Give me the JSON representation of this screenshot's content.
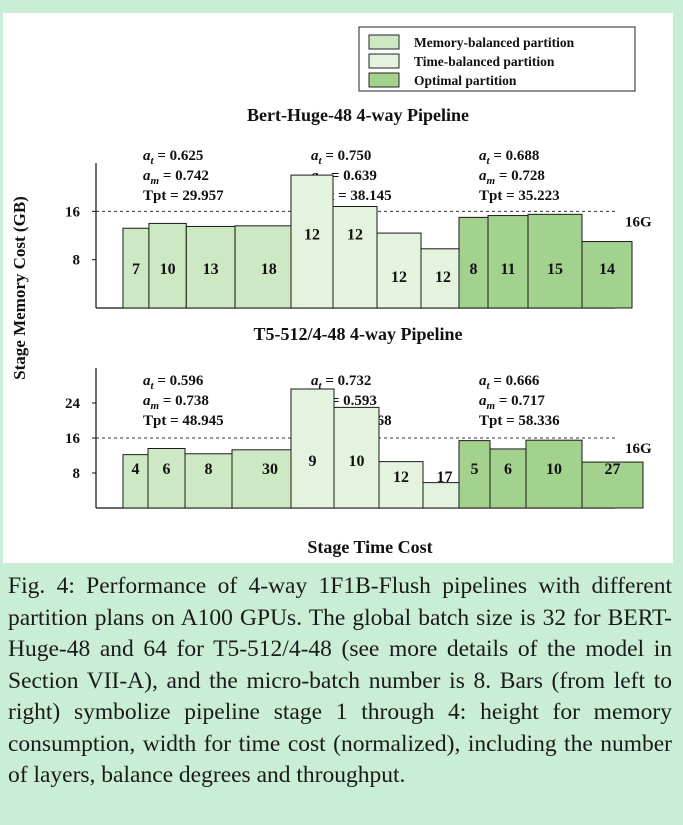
{
  "caption": "Fig. 4: Performance of 4-way 1F1B-Flush pipelines with different partition plans on A100 GPUs. The global batch size is 32 for BERT-Huge-48 and 64 for T5-512/4-48 (see more details of the model in Section VII-A), and the micro-batch number is 8. Bars (from left to right) symbolize pipeline stage 1 through 4: height for memory consumption, width for time cost (normalized), including the number of layers, balance degrees and throughput.",
  "colors": {
    "memory_balanced": "#cde9c3",
    "time_balanced": "#e4f3de",
    "optimal": "#a3d28f",
    "bar_stroke": "#1a1a1a"
  },
  "chart_data": {
    "type": "bar",
    "ylabel": "Stage Memory Cost (GB)",
    "xlabel": "Stage Time Cost",
    "legend": {
      "position": "top-right",
      "entries": [
        {
          "key": "memory_balanced",
          "label": "Memory-balanced partition"
        },
        {
          "key": "time_balanced",
          "label": "Time-balanced partition"
        },
        {
          "key": "optimal",
          "label": "Optimal partition"
        }
      ]
    },
    "panels": [
      {
        "title": "Bert-Huge-48 4-way Pipeline",
        "ylim": [
          0,
          24
        ],
        "yticks": [
          "8",
          "16"
        ],
        "ytick_values": [
          8,
          16
        ],
        "threshold": 16,
        "threshold_label": "16G",
        "groups": [
          {
            "partition": "memory_balanced",
            "metrics": {
              "a_t": "0.625",
              "a_m": "0.742",
              "tpt": "29.957"
            },
            "stages": [
              {
                "layers": "7",
                "memory": 13.2,
                "time": 0.25
              },
              {
                "layers": "10",
                "memory": 14.0,
                "time": 0.36
              },
              {
                "layers": "13",
                "memory": 13.5,
                "time": 0.47
              },
              {
                "layers": "18",
                "memory": 13.6,
                "time": 0.65
              }
            ]
          },
          {
            "partition": "time_balanced",
            "metrics": {
              "a_t": "0.750",
              "a_m": "0.639",
              "tpt": "38.145"
            },
            "stages": [
              {
                "layers": "12",
                "memory": 22.0,
                "time": 0.42
              },
              {
                "layers": "12",
                "memory": 16.8,
                "time": 0.44
              },
              {
                "layers": "12",
                "memory": 12.4,
                "time": 0.44
              },
              {
                "layers": "12",
                "memory": 9.8,
                "time": 0.44
              }
            ]
          },
          {
            "partition": "optimal",
            "metrics": {
              "a_t": "0.688",
              "a_m": "0.728",
              "tpt": "35.223"
            },
            "stages": [
              {
                "layers": "8",
                "memory": 15.0,
                "time": 0.29
              },
              {
                "layers": "11",
                "memory": 15.3,
                "time": 0.4
              },
              {
                "layers": "15",
                "memory": 15.5,
                "time": 0.54
              },
              {
                "layers": "14",
                "memory": 11.0,
                "time": 0.5
              }
            ]
          }
        ]
      },
      {
        "title": "T5-512/4-48 4-way Pipeline",
        "ylim": [
          0,
          32
        ],
        "yticks": [
          "8",
          "16",
          "24"
        ],
        "ytick_values": [
          8,
          16,
          24
        ],
        "threshold": 16,
        "threshold_label": "16G",
        "groups": [
          {
            "partition": "memory_balanced",
            "metrics": {
              "a_t": "0.596",
              "a_m": "0.738",
              "tpt": "48.945"
            },
            "stages": [
              {
                "layers": "4",
                "memory": 12.2,
                "time": 0.25
              },
              {
                "layers": "6",
                "memory": 13.6,
                "time": 0.37
              },
              {
                "layers": "8",
                "memory": 12.4,
                "time": 0.47
              },
              {
                "layers": "30",
                "memory": 13.3,
                "time": 0.76
              }
            ]
          },
          {
            "partition": "time_balanced",
            "metrics": {
              "a_t": "0.732",
              "a_m": "0.593",
              "tpt": "71.468"
            },
            "stages": [
              {
                "layers": "9",
                "memory": 27.2,
                "time": 0.43
              },
              {
                "layers": "10",
                "memory": 23.0,
                "time": 0.45
              },
              {
                "layers": "12",
                "memory": 10.6,
                "time": 0.44
              },
              {
                "layers": "17",
                "memory": 5.8,
                "time": 0.43
              }
            ]
          },
          {
            "partition": "optimal",
            "metrics": {
              "a_t": "0.666",
              "a_m": "0.717",
              "tpt": "58.336"
            },
            "stages": [
              {
                "layers": "5",
                "memory": 15.4,
                "time": 0.31
              },
              {
                "layers": "6",
                "memory": 13.5,
                "time": 0.36
              },
              {
                "layers": "10",
                "memory": 15.5,
                "time": 0.56
              },
              {
                "layers": "27",
                "memory": 10.5,
                "time": 0.61
              }
            ]
          }
        ]
      }
    ]
  }
}
